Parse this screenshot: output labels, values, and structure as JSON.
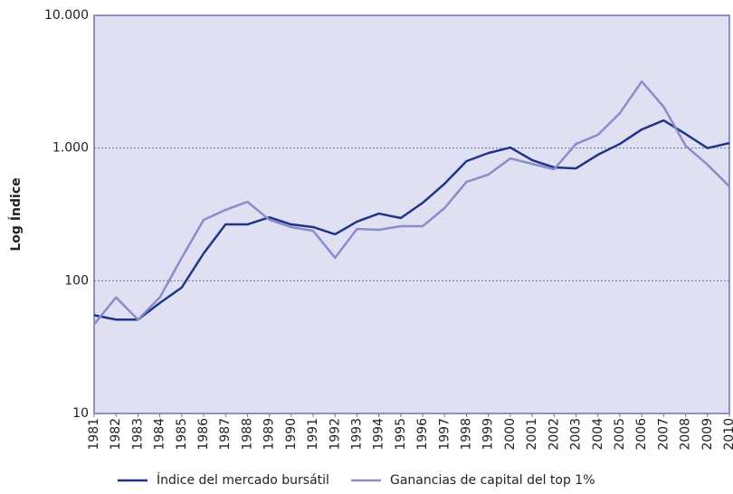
{
  "chart_data": {
    "type": "line",
    "ylabel": "Log Índice",
    "ylog": true,
    "grid": true,
    "categories": [
      "1981",
      "1982",
      "1983",
      "1984",
      "1985",
      "1986",
      "1987",
      "1988",
      "1989",
      "1990",
      "1991",
      "1992",
      "1993",
      "1994",
      "1995",
      "1996",
      "1997",
      "1998",
      "1999",
      "2000",
      "2001",
      "2002",
      "2003",
      "2004",
      "2005",
      "2006",
      "2007",
      "2008",
      "2009",
      "2010"
    ],
    "series": [
      {
        "name": "Índice del mercado bursátil",
        "color": "#1f3586",
        "values": [
          55,
          51,
          51,
          68,
          89,
          161,
          266,
          266,
          301,
          266,
          254,
          224,
          279,
          321,
          297,
          387,
          539,
          797,
          918,
          1009,
          811,
          715,
          703,
          891,
          1075,
          1381,
          1617,
          1277,
          1000,
          1091
        ]
      },
      {
        "name": "Ganancias de capital del top 1%",
        "color": "#8a8ccc",
        "values": [
          47,
          75,
          51,
          75,
          149,
          288,
          342,
          394,
          288,
          254,
          238,
          149,
          246,
          242,
          258,
          258,
          353,
          556,
          631,
          836,
          760,
          692,
          1075,
          1259,
          1833,
          3177,
          2047,
          1042,
          750,
          514
        ]
      }
    ],
    "ylim": [
      10,
      10000
    ],
    "yticks": [
      10,
      100,
      {
        "value": 1000,
        "label": "1.000"
      },
      {
        "value": 10000,
        "label": "10.000"
      }
    ]
  }
}
